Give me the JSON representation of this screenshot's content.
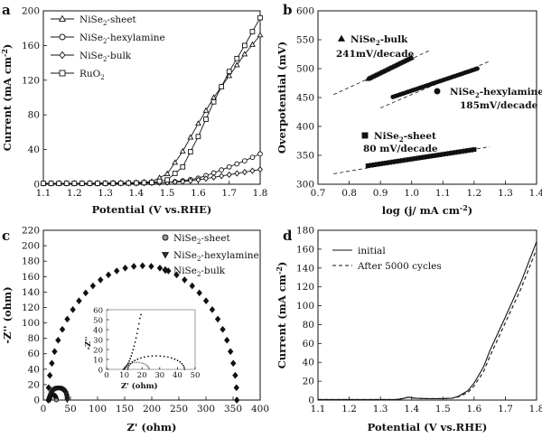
{
  "chart_data": [
    {
      "panel": "a",
      "type": "line",
      "xlabel": "Potential (V vs.RHE)",
      "ylabel": "Current (mA cm-2)",
      "xlim": [
        1.1,
        1.8
      ],
      "ylim": [
        0,
        200
      ],
      "xticks": [
        "1.1",
        "1.2",
        "1.3",
        "1.4",
        "1.5",
        "1.6",
        "1.7",
        "1.8"
      ],
      "yticks": [
        "0",
        "40",
        "80",
        "120",
        "160",
        "200"
      ],
      "legend_position": "top-left",
      "series": [
        {
          "name": "NiSe2-sheet",
          "marker": "triangle",
          "x": [
            1.1,
            1.2,
            1.3,
            1.4,
            1.45,
            1.5,
            1.55,
            1.6,
            1.65,
            1.7,
            1.75,
            1.8
          ],
          "y": [
            1,
            1,
            1.5,
            2,
            3,
            12,
            38,
            70,
            100,
            125,
            150,
            172
          ]
        },
        {
          "name": "NiSe2-hexylamine",
          "marker": "circle",
          "x": [
            1.1,
            1.2,
            1.3,
            1.4,
            1.5,
            1.55,
            1.6,
            1.65,
            1.7,
            1.75,
            1.8
          ],
          "y": [
            1,
            1,
            1,
            1.5,
            2,
            4,
            7,
            13,
            20,
            27,
            35
          ]
        },
        {
          "name": "NiSe2-bulk",
          "marker": "diamond",
          "x": [
            1.1,
            1.2,
            1.3,
            1.4,
            1.5,
            1.55,
            1.6,
            1.65,
            1.7,
            1.75,
            1.8
          ],
          "y": [
            1,
            1,
            1,
            1,
            2,
            3,
            5,
            8,
            11,
            14,
            17
          ]
        },
        {
          "name": "RuO2",
          "marker": "square",
          "x": [
            1.1,
            1.2,
            1.3,
            1.4,
            1.45,
            1.5,
            1.55,
            1.6,
            1.65,
            1.7,
            1.75,
            1.8
          ],
          "y": [
            1,
            1,
            1,
            1.5,
            2,
            5,
            20,
            55,
            95,
            130,
            160,
            192
          ]
        }
      ]
    },
    {
      "panel": "b",
      "type": "scatter",
      "xlabel": "log (j/ mA cm-2)",
      "ylabel": "Overpotential (mV)",
      "xlim": [
        0.7,
        1.4
      ],
      "ylim": [
        300,
        600
      ],
      "xticks": [
        "0.7",
        "0.8",
        "0.9",
        "1.0",
        "1.1",
        "1.2",
        "1.3",
        "1.4"
      ],
      "yticks": [
        "300",
        "350",
        "400",
        "450",
        "500",
        "550",
        "600"
      ],
      "series": [
        {
          "name": "NiSe2-bulk",
          "marker": "triangle",
          "slope": "241mV/decade",
          "x": [
            0.86,
            1.0
          ],
          "y": [
            482,
            519
          ]
        },
        {
          "name": "NiSe2-hexylamine",
          "marker": "circle",
          "slope": "185mV/decade",
          "x": [
            0.94,
            1.21
          ],
          "y": [
            451,
            500
          ]
        },
        {
          "name": "NiSe2-sheet",
          "marker": "square",
          "slope": "80 mV/decade",
          "x": [
            0.86,
            1.2
          ],
          "y": [
            332,
            360
          ]
        }
      ],
      "fit_lines": [
        {
          "x": [
            0.75,
            1.06
          ],
          "y": [
            455,
            532
          ]
        },
        {
          "x": [
            0.9,
            1.25
          ],
          "y": [
            432,
            513
          ]
        },
        {
          "x": [
            0.75,
            1.25
          ],
          "y": [
            318,
            365
          ]
        }
      ]
    },
    {
      "panel": "c",
      "type": "scatter",
      "xlabel": "Z' (ohm)",
      "ylabel": "-Z'' (ohm)",
      "xlim": [
        0,
        400
      ],
      "ylim": [
        0,
        220
      ],
      "xticks": [
        "0",
        "50",
        "100",
        "150",
        "200",
        "250",
        "300",
        "350",
        "400"
      ],
      "yticks": [
        "0",
        "20",
        "40",
        "60",
        "80",
        "100",
        "120",
        "140",
        "160",
        "180",
        "200",
        "220"
      ],
      "legend_position": "top-right",
      "series": [
        {
          "name": "NiSe2-sheet",
          "marker": "circle",
          "center": 17,
          "radius": 7,
          "xstart": 10,
          "xend": 24
        },
        {
          "name": "NiSe2-hexylamine",
          "marker": "triangle-down",
          "center": 28,
          "radius": 16,
          "xstart": 12,
          "xend": 44
        },
        {
          "name": "NiSe2-bulk",
          "marker": "diamond",
          "center": 183,
          "radius": 174,
          "xstart": 9,
          "xend": 357
        }
      ],
      "inset": {
        "xlabel": "Z' (ohm)",
        "ylabel": "-Z''",
        "xlim": [
          0,
          50
        ],
        "ylim": [
          0,
          60
        ],
        "xticks": [
          "0",
          "10",
          "20",
          "30",
          "40",
          "50"
        ],
        "yticks": [
          "0",
          "10",
          "20",
          "30",
          "40",
          "50",
          "60"
        ]
      }
    },
    {
      "panel": "d",
      "type": "line",
      "xlabel": "Potential (V vs.RHE)",
      "ylabel": "Current (mA cm-2)",
      "xlim": [
        1.1,
        1.8
      ],
      "ylim": [
        0,
        180
      ],
      "xticks": [
        "1.1",
        "1.2",
        "1.3",
        "1.4",
        "1.5",
        "1.6",
        "1.7",
        "1.8"
      ],
      "yticks": [
        "0",
        "20",
        "40",
        "60",
        "80",
        "100",
        "120",
        "140",
        "160",
        "180"
      ],
      "legend_position": "top-left",
      "series": [
        {
          "name": "initial",
          "style": "solid",
          "x": [
            1.1,
            1.2,
            1.3,
            1.35,
            1.37,
            1.39,
            1.41,
            1.45,
            1.5,
            1.53,
            1.55,
            1.58,
            1.6,
            1.63,
            1.65,
            1.7,
            1.75,
            1.8
          ],
          "y": [
            0.5,
            0.5,
            0.5,
            0.5,
            1.5,
            3,
            2,
            1.5,
            1.5,
            2,
            4,
            10,
            18,
            35,
            52,
            88,
            125,
            168
          ]
        },
        {
          "name": "After 5000 cycles",
          "style": "dashed",
          "x": [
            1.1,
            1.2,
            1.3,
            1.35,
            1.37,
            1.39,
            1.41,
            1.45,
            1.5,
            1.53,
            1.55,
            1.58,
            1.6,
            1.63,
            1.65,
            1.7,
            1.75,
            1.8
          ],
          "y": [
            0.5,
            0.5,
            0.5,
            0.5,
            1.5,
            3,
            2,
            1.5,
            1.5,
            2,
            3.5,
            8,
            15,
            30,
            46,
            82,
            118,
            160
          ]
        }
      ]
    }
  ]
}
